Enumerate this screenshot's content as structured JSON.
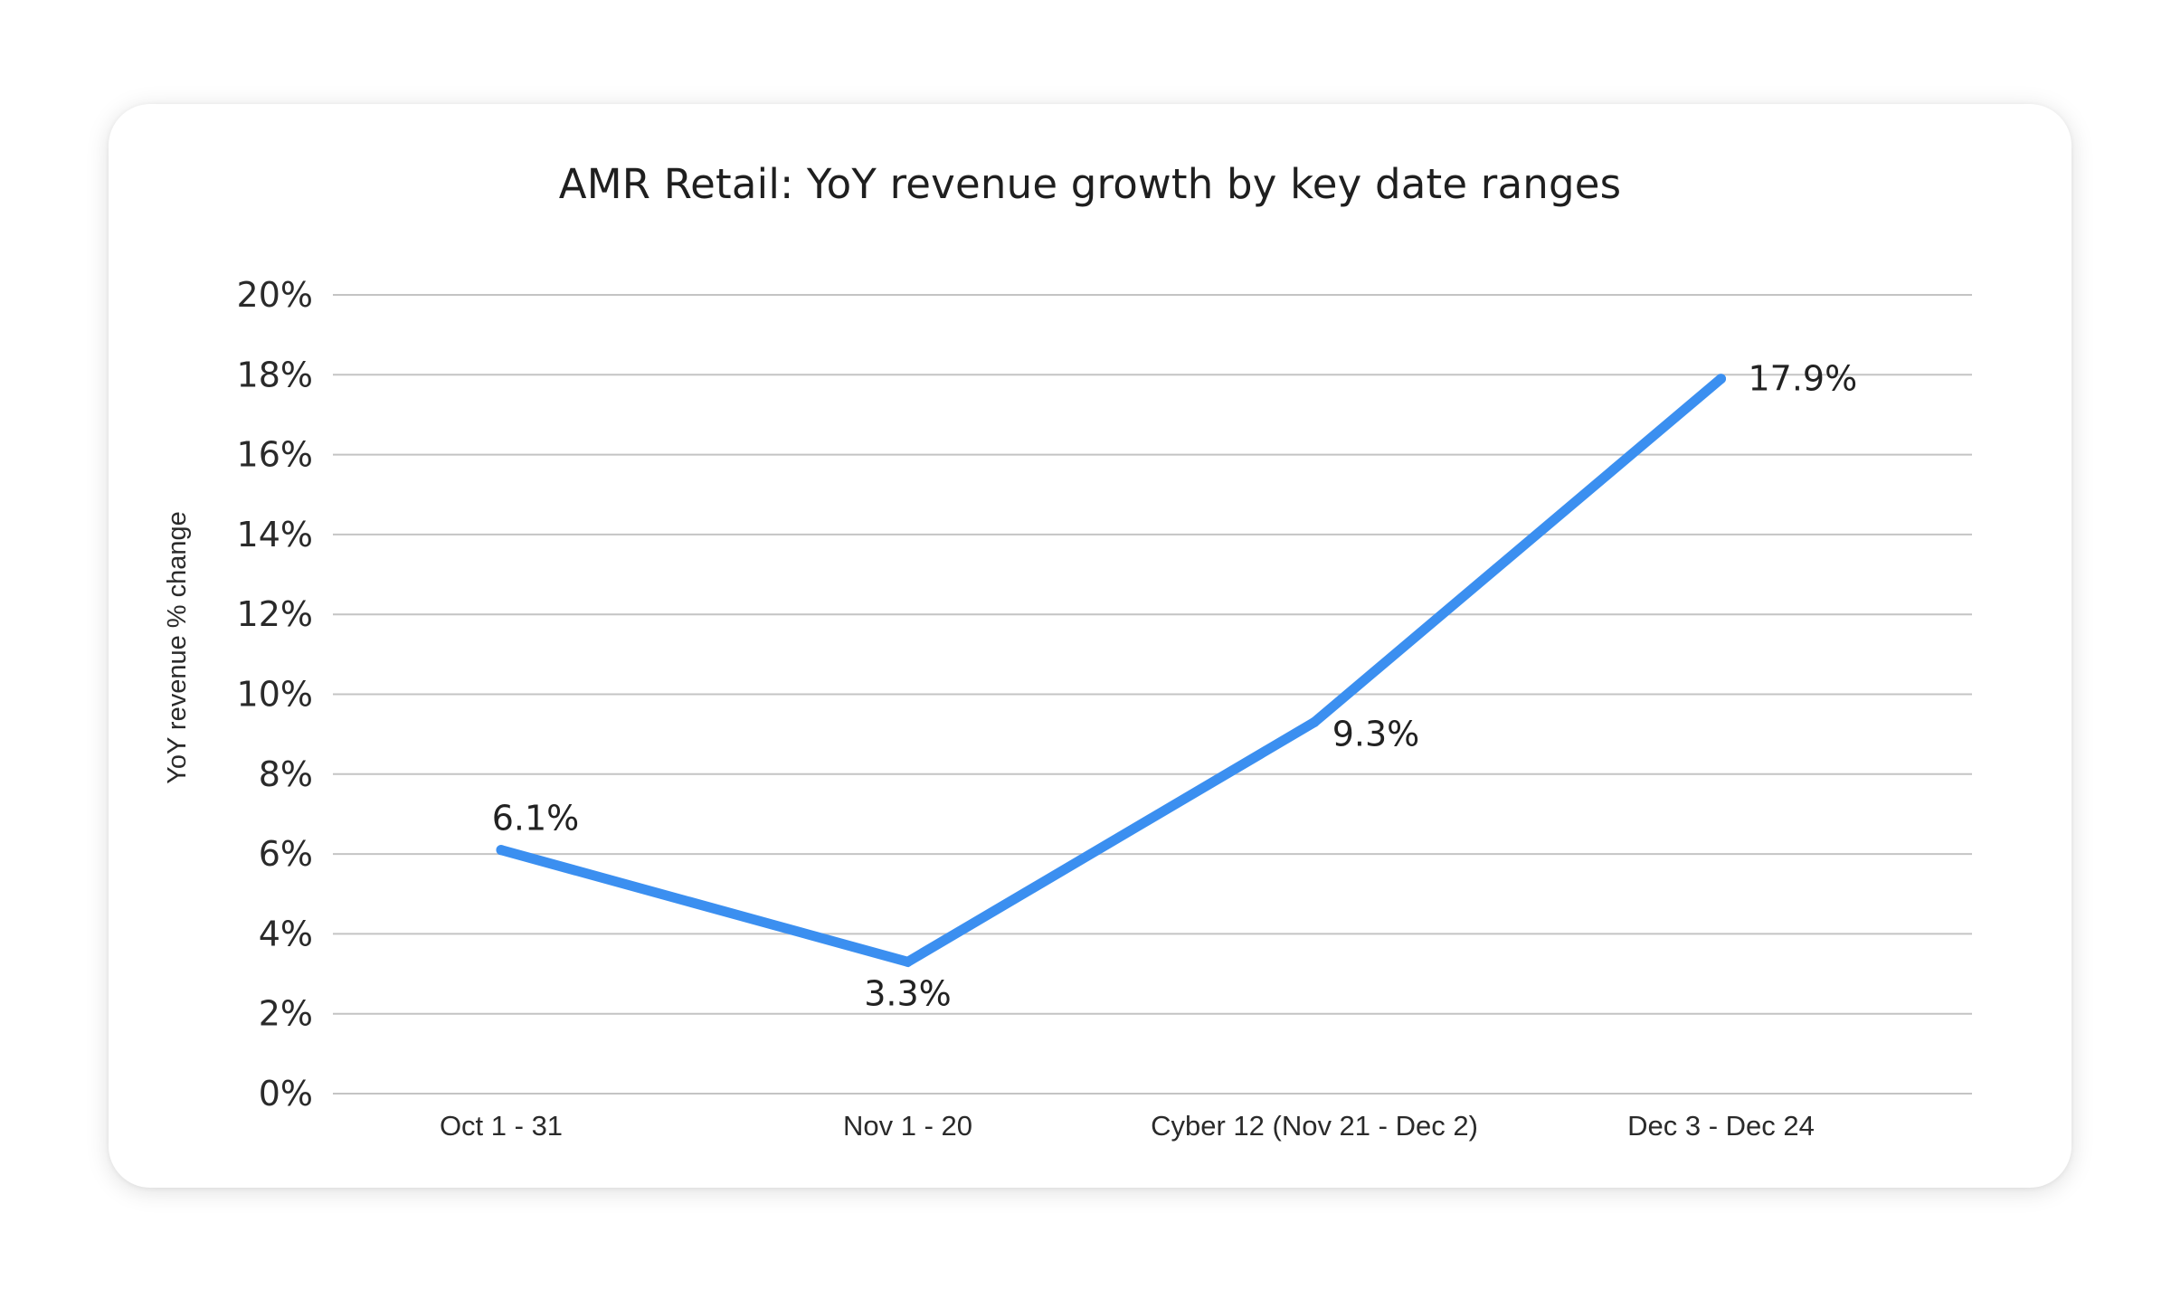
{
  "chart_data": {
    "type": "line",
    "title": "AMR Retail: YoY revenue growth by key date ranges",
    "xlabel": "",
    "ylabel": "YoY revenue % change",
    "categories": [
      "Oct 1 - 31",
      "Nov 1 - 20",
      "Cyber 12 (Nov 21 - Dec 2)",
      "Dec 3 - Dec 24"
    ],
    "values": [
      6.1,
      3.3,
      9.3,
      17.9
    ],
    "data_labels": [
      "6.1%",
      "3.3%",
      "9.3%",
      "17.9%"
    ],
    "ylim": [
      0,
      20
    ],
    "yticks": [
      0,
      2,
      4,
      6,
      8,
      10,
      12,
      14,
      16,
      18,
      20
    ],
    "ytick_labels": [
      "0%",
      "2%",
      "4%",
      "6%",
      "8%",
      "10%",
      "12%",
      "14%",
      "16%",
      "18%",
      "20%"
    ],
    "grid": true,
    "legend": "none",
    "line_color": "#3b8ff0",
    "grid_color": "#c4c4c4"
  }
}
